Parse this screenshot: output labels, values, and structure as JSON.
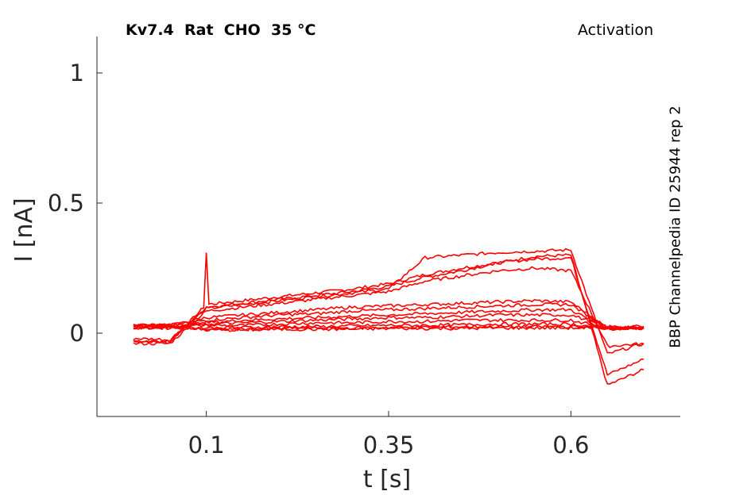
{
  "chart_data": {
    "type": "line",
    "title": "Kv7.4  Rat  CHO  35 °C",
    "subtitle": "Activation",
    "side_label": "BBP Channelpedia ID 25944 rep 2",
    "xlabel": "t [s]",
    "ylabel": "I [nA]",
    "xlim": [
      -0.05,
      0.75
    ],
    "ylim": [
      -0.32,
      1.14
    ],
    "xticks": [
      0.1,
      0.35,
      0.6
    ],
    "xtick_labels": [
      "0.1",
      "0.35",
      "0.6"
    ],
    "yticks": [
      0,
      0.5,
      1
    ],
    "ytick_labels": [
      "0",
      "0.5",
      "1"
    ],
    "grid": false,
    "line_color": "#ff0000",
    "x": [
      0.0,
      0.05,
      0.1,
      0.15,
      0.2,
      0.25,
      0.3,
      0.35,
      0.4,
      0.45,
      0.5,
      0.55,
      0.6,
      0.65,
      0.7
    ],
    "series": [
      {
        "values": [
          -0.03,
          -0.035,
          0.11,
          0.125,
          0.14,
          0.155,
          0.17,
          0.19,
          0.225,
          0.25,
          0.27,
          0.295,
          0.3,
          -0.2,
          -0.14
        ]
      },
      {
        "values": [
          -0.03,
          -0.03,
          0.1,
          0.115,
          0.13,
          0.145,
          0.16,
          0.18,
          0.215,
          0.24,
          0.27,
          0.285,
          0.29,
          -0.16,
          -0.1
        ]
      },
      {
        "values": [
          -0.02,
          -0.025,
          0.095,
          0.11,
          0.125,
          0.14,
          0.155,
          0.17,
          0.29,
          0.3,
          0.31,
          0.315,
          0.32,
          -0.08,
          -0.04
        ]
      },
      {
        "values": [
          -0.04,
          -0.04,
          0.085,
          0.1,
          0.115,
          0.13,
          0.145,
          0.16,
          0.2,
          0.22,
          0.24,
          0.25,
          0.24,
          -0.05,
          -0.04
        ]
      },
      {
        "values": [
          0.03,
          0.03,
          0.06,
          0.07,
          0.08,
          0.09,
          0.1,
          0.105,
          0.11,
          0.115,
          0.12,
          0.125,
          0.12,
          0.02,
          0.025
        ]
      },
      {
        "values": [
          0.025,
          0.03,
          0.05,
          0.06,
          0.07,
          0.075,
          0.085,
          0.09,
          0.095,
          0.1,
          0.105,
          0.11,
          0.11,
          0.02,
          0.02
        ]
      },
      {
        "values": [
          0.02,
          0.025,
          0.04,
          0.05,
          0.055,
          0.06,
          0.065,
          0.07,
          0.075,
          0.08,
          0.085,
          0.09,
          0.09,
          0.015,
          0.02
        ]
      },
      {
        "values": [
          0.03,
          0.03,
          0.035,
          0.04,
          0.045,
          0.05,
          0.055,
          0.06,
          0.06,
          0.065,
          0.07,
          0.07,
          0.07,
          0.025,
          0.025
        ]
      },
      {
        "values": [
          0.025,
          0.025,
          0.03,
          0.03,
          0.035,
          0.04,
          0.04,
          0.045,
          0.045,
          0.05,
          0.05,
          0.05,
          0.05,
          0.02,
          0.02
        ]
      },
      {
        "values": [
          0.02,
          0.02,
          0.02,
          0.022,
          0.025,
          0.025,
          0.028,
          0.03,
          0.03,
          0.032,
          0.035,
          0.035,
          0.035,
          0.02,
          0.02
        ]
      },
      {
        "values": [
          0.025,
          0.025,
          0.015,
          0.015,
          0.018,
          0.02,
          0.02,
          0.022,
          0.022,
          0.025,
          0.025,
          0.025,
          0.025,
          0.02,
          0.02
        ]
      },
      {
        "values": [
          0.03,
          0.03,
          0.012,
          0.012,
          0.015,
          0.015,
          0.015,
          0.018,
          0.018,
          0.018,
          0.02,
          0.02,
          0.02,
          0.02,
          0.02
        ]
      }
    ]
  }
}
